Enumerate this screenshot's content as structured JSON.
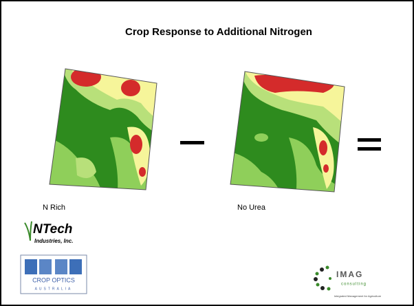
{
  "slide": {
    "title": "Crop Response to Additional Nitrogen",
    "maps": [
      {
        "label": "N Rich"
      },
      {
        "label": "No Urea"
      }
    ],
    "logos": {
      "ntech": {
        "name": "NTech",
        "subtitle": "Industries, Inc."
      },
      "crop_optics": {
        "name": "CROP OPTICS",
        "country": "AUSTRALIA"
      },
      "imag": {
        "name": "IMAG",
        "subtitle": "consulting",
        "tagline": "Integrated Management for Agriculture"
      }
    }
  }
}
